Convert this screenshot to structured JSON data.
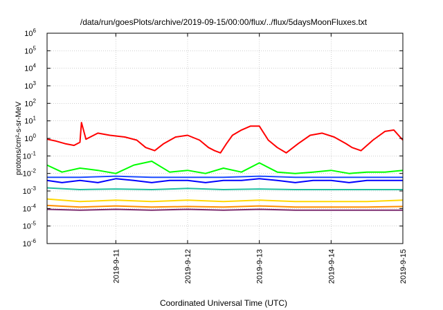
{
  "chart_data": {
    "type": "line",
    "title": "/data/run/goesPlots/archive/2019-09-15/00:00/flux/../flux/5daysMoonFluxes.txt",
    "xlabel": "Coordinated Universal Time (UTC)",
    "ylabel": "protons/cm²-s-sr-MeV",
    "y_scale": "log",
    "ylim": [
      1e-06,
      1000000.0
    ],
    "xlim": [
      "2019-09-10 01:00",
      "2019-09-15 00:00"
    ],
    "grid": true,
    "legend": "none",
    "x_ticks": [
      "2019-9-11",
      "2019-9-12",
      "2019-9-13",
      "2019-9-14",
      "2019-9-15"
    ],
    "y_ticks": [
      {
        "base": "10",
        "exp": "6",
        "value": 1000000.0
      },
      {
        "base": "10",
        "exp": "5",
        "value": 100000.0
      },
      {
        "base": "10",
        "exp": "4",
        "value": 10000.0
      },
      {
        "base": "10",
        "exp": "3",
        "value": 1000.0
      },
      {
        "base": "10",
        "exp": "2",
        "value": 100.0
      },
      {
        "base": "10",
        "exp": "1",
        "value": 10.0
      },
      {
        "base": "10",
        "exp": "0",
        "value": 1.0
      },
      {
        "base": "10",
        "exp": "-1",
        "value": 0.1
      },
      {
        "base": "10",
        "exp": "-2",
        "value": 0.01
      },
      {
        "base": "10",
        "exp": "-3",
        "value": 0.001
      },
      {
        "base": "10",
        "exp": "-4",
        "value": 0.0001
      },
      {
        "base": "10",
        "exp": "-5",
        "value": 1e-05
      },
      {
        "base": "10",
        "exp": "-6",
        "value": 1e-06
      }
    ],
    "series": [
      {
        "color": "#ff0000",
        "x": [
          "2019-09-10 01:00",
          "2019-09-10 04:00",
          "2019-09-10 07:00",
          "2019-09-10 10:00",
          "2019-09-10 12:00",
          "2019-09-10 12:30",
          "2019-09-10 14:00",
          "2019-09-10 18:00",
          "2019-09-10 22:00",
          "2019-09-11 03:00",
          "2019-09-11 07:00",
          "2019-09-11 10:00",
          "2019-09-11 13:00",
          "2019-09-11 16:00",
          "2019-09-11 20:00",
          "2019-09-12 00:00",
          "2019-09-12 04:00",
          "2019-09-12 07:00",
          "2019-09-12 09:00",
          "2019-09-12 11:00",
          "2019-09-12 13:00",
          "2019-09-12 15:00",
          "2019-09-12 18:00",
          "2019-09-12 21:00",
          "2019-09-13 00:00",
          "2019-09-13 03:00",
          "2019-09-13 06:00",
          "2019-09-13 09:00",
          "2019-09-13 13:00",
          "2019-09-13 17:00",
          "2019-09-13 21:00",
          "2019-09-14 01:00",
          "2019-09-14 05:00",
          "2019-09-14 07:00",
          "2019-09-14 10:00",
          "2019-09-14 14:00",
          "2019-09-14 18:00",
          "2019-09-14 21:00",
          "2019-09-15 00:00"
        ],
        "y": [
          0.9,
          0.7,
          0.5,
          0.4,
          0.6,
          8,
          0.9,
          2,
          1.5,
          1.2,
          0.8,
          0.3,
          0.2,
          0.5,
          1.2,
          1.5,
          0.8,
          0.3,
          0.2,
          0.15,
          0.5,
          1.5,
          3,
          5,
          5,
          0.8,
          0.3,
          0.15,
          0.5,
          1.5,
          2,
          1.2,
          0.5,
          0.3,
          0.2,
          0.8,
          2.5,
          3,
          0.8
        ]
      },
      {
        "color": "#00ff00",
        "x": [
          "2019-09-10 01:00",
          "2019-09-10 06:00",
          "2019-09-10 12:00",
          "2019-09-10 18:00",
          "2019-09-11 00:00",
          "2019-09-11 06:00",
          "2019-09-11 12:00",
          "2019-09-11 18:00",
          "2019-09-12 00:00",
          "2019-09-12 06:00",
          "2019-09-12 12:00",
          "2019-09-12 18:00",
          "2019-09-13 00:00",
          "2019-09-13 06:00",
          "2019-09-13 12:00",
          "2019-09-13 18:00",
          "2019-09-14 00:00",
          "2019-09-14 06:00",
          "2019-09-14 12:00",
          "2019-09-14 18:00",
          "2019-09-15 00:00"
        ],
        "y": [
          0.03,
          0.012,
          0.02,
          0.015,
          0.01,
          0.03,
          0.05,
          0.012,
          0.015,
          0.01,
          0.02,
          0.012,
          0.04,
          0.012,
          0.01,
          0.012,
          0.015,
          0.01,
          0.012,
          0.012,
          0.015
        ]
      },
      {
        "color": "#0000ff",
        "x": [
          "2019-09-10 01:00",
          "2019-09-10 06:00",
          "2019-09-10 12:00",
          "2019-09-10 18:00",
          "2019-09-11 00:00",
          "2019-09-11 06:00",
          "2019-09-11 12:00",
          "2019-09-11 18:00",
          "2019-09-12 00:00",
          "2019-09-12 06:00",
          "2019-09-12 12:00",
          "2019-09-12 18:00",
          "2019-09-13 00:00",
          "2019-09-13 06:00",
          "2019-09-13 12:00",
          "2019-09-13 18:00",
          "2019-09-14 00:00",
          "2019-09-14 06:00",
          "2019-09-14 12:00",
          "2019-09-14 18:00",
          "2019-09-15 00:00"
        ],
        "y": [
          0.004,
          0.003,
          0.004,
          0.003,
          0.005,
          0.004,
          0.003,
          0.004,
          0.004,
          0.003,
          0.004,
          0.004,
          0.005,
          0.004,
          0.003,
          0.004,
          0.004,
          0.003,
          0.004,
          0.004,
          0.004
        ]
      },
      {
        "color": "#1a4aff",
        "x": [
          "2019-09-10 01:00",
          "2019-09-10 12:00",
          "2019-09-11 00:00",
          "2019-09-11 12:00",
          "2019-09-12 00:00",
          "2019-09-12 12:00",
          "2019-09-13 00:00",
          "2019-09-13 12:00",
          "2019-09-14 00:00",
          "2019-09-14 12:00",
          "2019-09-15 00:00"
        ],
        "y": [
          0.006,
          0.006,
          0.007,
          0.006,
          0.006,
          0.006,
          0.007,
          0.006,
          0.006,
          0.006,
          0.006
        ]
      },
      {
        "color": "#20c0a0",
        "x": [
          "2019-09-10 01:00",
          "2019-09-10 12:00",
          "2019-09-11 00:00",
          "2019-09-11 12:00",
          "2019-09-12 00:00",
          "2019-09-12 12:00",
          "2019-09-13 00:00",
          "2019-09-13 12:00",
          "2019-09-14 00:00",
          "2019-09-14 12:00",
          "2019-09-15 00:00"
        ],
        "y": [
          0.0015,
          0.0012,
          0.0013,
          0.0012,
          0.0014,
          0.0012,
          0.0013,
          0.0012,
          0.0012,
          0.0012,
          0.0012
        ]
      },
      {
        "color": "#ffd700",
        "x": [
          "2019-09-10 01:00",
          "2019-09-10 12:00",
          "2019-09-11 00:00",
          "2019-09-11 12:00",
          "2019-09-12 00:00",
          "2019-09-12 12:00",
          "2019-09-13 00:00",
          "2019-09-13 12:00",
          "2019-09-14 00:00",
          "2019-09-14 12:00",
          "2019-09-15 00:00"
        ],
        "y": [
          0.00035,
          0.00025,
          0.0003,
          0.00025,
          0.0003,
          0.00025,
          0.0003,
          0.00025,
          0.00025,
          0.00025,
          0.0003
        ]
      },
      {
        "color": "#ff8c00",
        "x": [
          "2019-09-10 01:00",
          "2019-09-10 12:00",
          "2019-09-11 00:00",
          "2019-09-11 12:00",
          "2019-09-12 00:00",
          "2019-09-12 12:00",
          "2019-09-13 00:00",
          "2019-09-13 12:00",
          "2019-09-14 00:00",
          "2019-09-14 12:00",
          "2019-09-15 00:00"
        ],
        "y": [
          0.00015,
          0.00012,
          0.00014,
          0.00012,
          0.00013,
          0.00012,
          0.00014,
          0.00012,
          0.00012,
          0.00012,
          0.00013
        ]
      },
      {
        "color": "#7b2a6e",
        "x": [
          "2019-09-10 01:00",
          "2019-09-10 12:00",
          "2019-09-11 00:00",
          "2019-09-11 12:00",
          "2019-09-12 00:00",
          "2019-09-12 12:00",
          "2019-09-13 00:00",
          "2019-09-13 12:00",
          "2019-09-14 00:00",
          "2019-09-14 12:00",
          "2019-09-15 00:00"
        ],
        "y": [
          9e-05,
          8e-05,
          9e-05,
          8e-05,
          9e-05,
          8e-05,
          9e-05,
          8e-05,
          8e-05,
          8e-05,
          8e-05
        ]
      }
    ]
  }
}
